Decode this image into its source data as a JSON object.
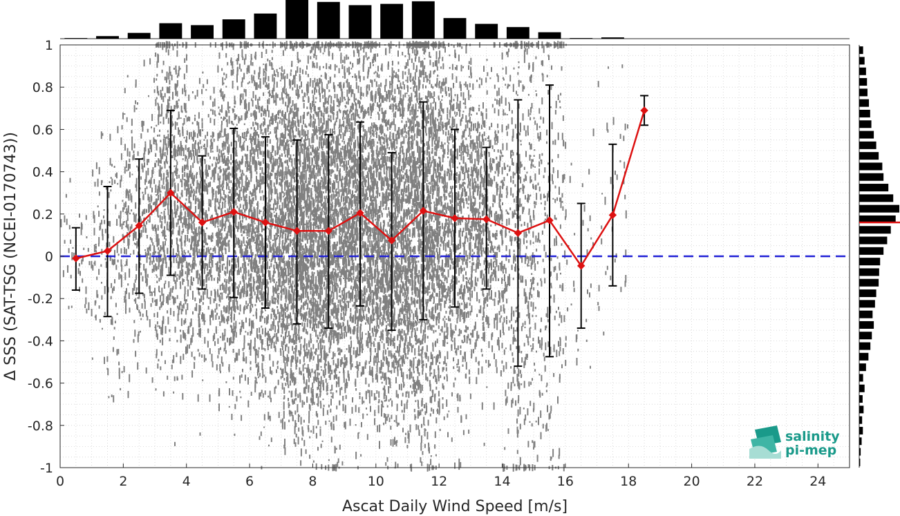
{
  "chart_data": {
    "type": "scatter",
    "xlabel": "Ascat Daily Wind Speed [m/s]",
    "ylabel": "Δ SSS (SAT-TSG (NCEI-0170743))",
    "xlim": [
      0,
      25
    ],
    "ylim": [
      -1,
      1
    ],
    "xticks": [
      "0",
      "2",
      "4",
      "6",
      "8",
      "10",
      "12",
      "14",
      "16",
      "18",
      "20",
      "22",
      "24"
    ],
    "yticks": [
      "-1",
      "-0.8",
      "-0.6",
      "-0.4",
      "-0.2",
      "0",
      "0.2",
      "0.4",
      "0.6",
      "0.8",
      "1"
    ],
    "grid": true,
    "reference_line": {
      "y": 0,
      "color": "#1f1fd6",
      "style": "dashed"
    },
    "mean_series": {
      "color": "#dd1111",
      "x": [
        0.5,
        1.5,
        2.5,
        3.5,
        4.5,
        5.5,
        6.5,
        7.5,
        8.5,
        9.5,
        10.5,
        11.5,
        12.5,
        13.5,
        14.5,
        15.5,
        16.5,
        17.5,
        18.5
      ],
      "y": [
        -0.01,
        0.025,
        0.145,
        0.3,
        0.16,
        0.21,
        0.16,
        0.12,
        0.12,
        0.205,
        0.075,
        0.215,
        0.18,
        0.175,
        0.11,
        0.17,
        -0.045,
        0.195,
        0.69
      ],
      "err_low": [
        -0.16,
        -0.285,
        -0.175,
        -0.09,
        -0.155,
        -0.195,
        -0.245,
        -0.32,
        -0.34,
        -0.235,
        -0.35,
        -0.3,
        -0.24,
        -0.155,
        -0.52,
        -0.475,
        -0.34,
        -0.14,
        0.62
      ],
      "err_high": [
        0.135,
        0.33,
        0.46,
        0.69,
        0.475,
        0.605,
        0.565,
        0.55,
        0.575,
        0.635,
        0.49,
        0.73,
        0.6,
        0.515,
        0.74,
        0.81,
        0.25,
        0.53,
        0.76
      ]
    },
    "top_histogram": {
      "x": [
        0.5,
        1.5,
        2.5,
        3.5,
        4.5,
        5.5,
        6.5,
        7.5,
        8.5,
        9.5,
        10.5,
        11.5,
        12.5,
        13.5,
        14.5,
        15.5,
        16.5,
        17.5
      ],
      "counts": [
        1,
        4,
        9,
        24,
        21,
        30,
        39,
        60,
        57,
        52,
        54,
        58,
        32,
        23,
        18,
        10,
        1,
        2
      ]
    },
    "right_histogram": {
      "y": [
        -0.975,
        -0.925,
        -0.875,
        -0.825,
        -0.775,
        -0.725,
        -0.675,
        -0.625,
        -0.575,
        -0.525,
        -0.475,
        -0.425,
        -0.375,
        -0.325,
        -0.275,
        -0.225,
        -0.175,
        -0.125,
        -0.075,
        -0.025,
        0.025,
        0.075,
        0.125,
        0.175,
        0.225,
        0.275,
        0.325,
        0.375,
        0.425,
        0.475,
        0.525,
        0.575,
        0.625,
        0.675,
        0.725,
        0.775,
        0.825,
        0.875,
        0.925,
        0.975
      ],
      "counts": [
        4,
        6,
        10,
        15,
        12,
        18,
        14,
        22,
        16,
        28,
        38,
        46,
        52,
        60,
        55,
        65,
        70,
        80,
        82,
        86,
        100,
        115,
        130,
        150,
        165,
        140,
        120,
        100,
        95,
        80,
        70,
        60,
        50,
        45,
        40,
        34,
        32,
        28,
        22,
        16
      ],
      "mean_line_y": 0.16
    },
    "logo": {
      "line1": "salinity",
      "line2": "pi-mep"
    }
  },
  "colors": {
    "scatter": "#808080",
    "bars": "#000000",
    "mean": "#dd1111",
    "zero_line": "#1f1fd6",
    "logo": "#1a9a8a"
  }
}
